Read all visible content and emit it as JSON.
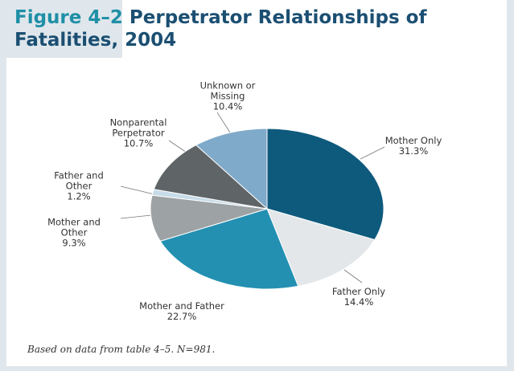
{
  "chart_data": {
    "type": "pie",
    "figure_label": "Figure 4–2",
    "title": "Perpetrator Relationships of Fatalities, 2004",
    "categories": [
      "Mother Only",
      "Father Only",
      "Mother and Father",
      "Mother and Other",
      "Father and Other",
      "Nonparental Perpetrator",
      "Unknown or Missing"
    ],
    "values": [
      31.3,
      14.4,
      22.7,
      9.3,
      1.2,
      10.7,
      10.4
    ],
    "value_labels": [
      "31.3%",
      "14.4%",
      "22.7%",
      "9.3%",
      "1.2%",
      "10.7%",
      "10.4%"
    ],
    "colors": [
      "#0e5a7d",
      "#e4e7ea",
      "#2390b2",
      "#9da2a5",
      "#c7dce8",
      "#5f6467",
      "#80aac9"
    ],
    "note": "Based on data from table 4–5. N=981."
  }
}
